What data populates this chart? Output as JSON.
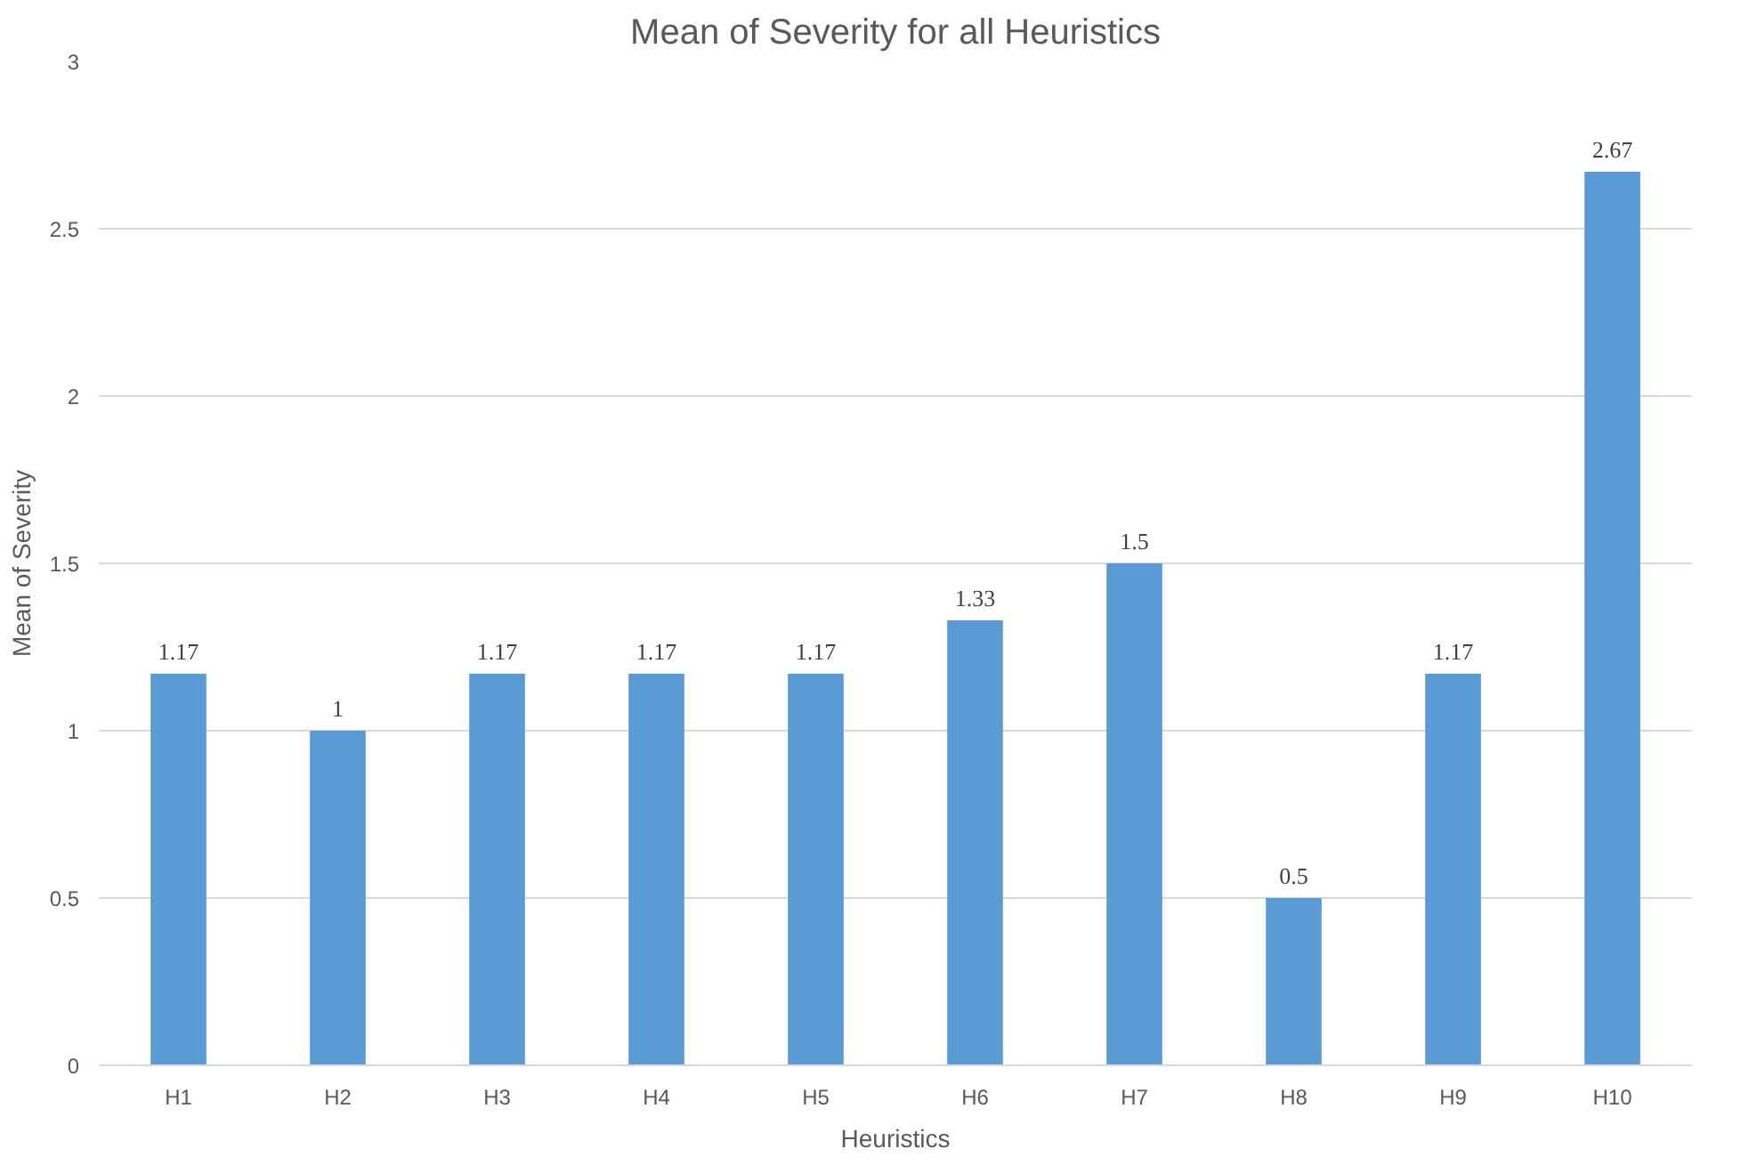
{
  "chart_data": {
    "type": "bar",
    "title": "Mean of Severity for all Heuristics",
    "xlabel": "Heuristics",
    "ylabel": "Mean of Severity",
    "categories": [
      "H1",
      "H2",
      "H3",
      "H4",
      "H5",
      "H6",
      "H7",
      "H8",
      "H9",
      "H10"
    ],
    "values": [
      1.17,
      1,
      1.17,
      1.17,
      1.17,
      1.33,
      1.5,
      0.5,
      1.17,
      2.67
    ],
    "color": "#5b9bd5",
    "ylim": [
      0,
      3
    ],
    "yticks": [
      0,
      0.5,
      1,
      1.5,
      2,
      2.5,
      3
    ],
    "grid": "y",
    "data_labels": true
  }
}
